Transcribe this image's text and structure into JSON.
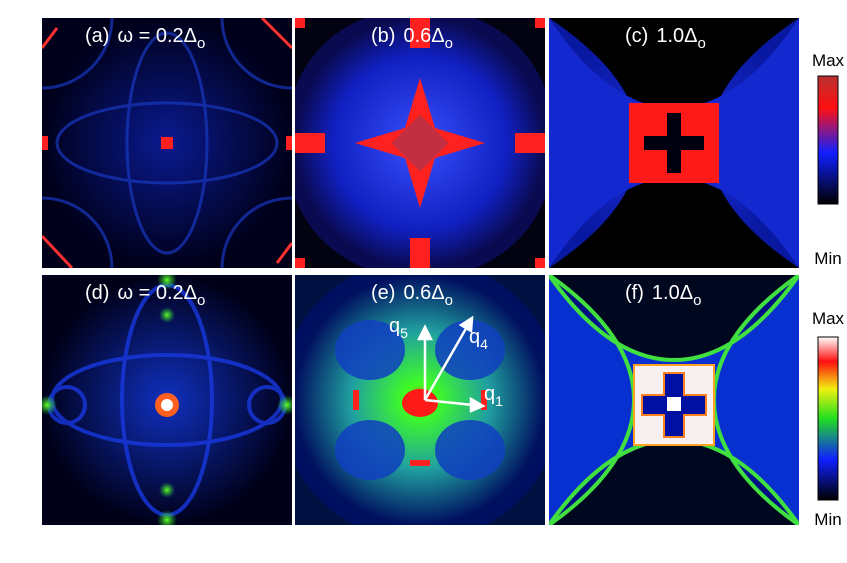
{
  "panels": [
    {
      "label": "(a)",
      "text": "ω = 0.2Δ",
      "sub": "o"
    },
    {
      "label": "(b)",
      "text": "0.6Δ",
      "sub": "o"
    },
    {
      "label": "(c)",
      "text": "1.0Δ",
      "sub": "o"
    },
    {
      "label": "(d)",
      "text": "ω = 0.2Δ",
      "sub": "o"
    },
    {
      "label": "(e)",
      "text": "0.6Δ",
      "sub": "o"
    },
    {
      "label": "(f)",
      "text": "1.0Δ",
      "sub": "o"
    }
  ],
  "colorbars": [
    {
      "max": "Max",
      "min": "Min"
    },
    {
      "max": "Max",
      "min": "Min"
    }
  ],
  "vectors": [
    {
      "name": "q",
      "sub": "5"
    },
    {
      "name": "q",
      "sub": "4"
    },
    {
      "name": "q",
      "sub": "1"
    }
  ]
}
